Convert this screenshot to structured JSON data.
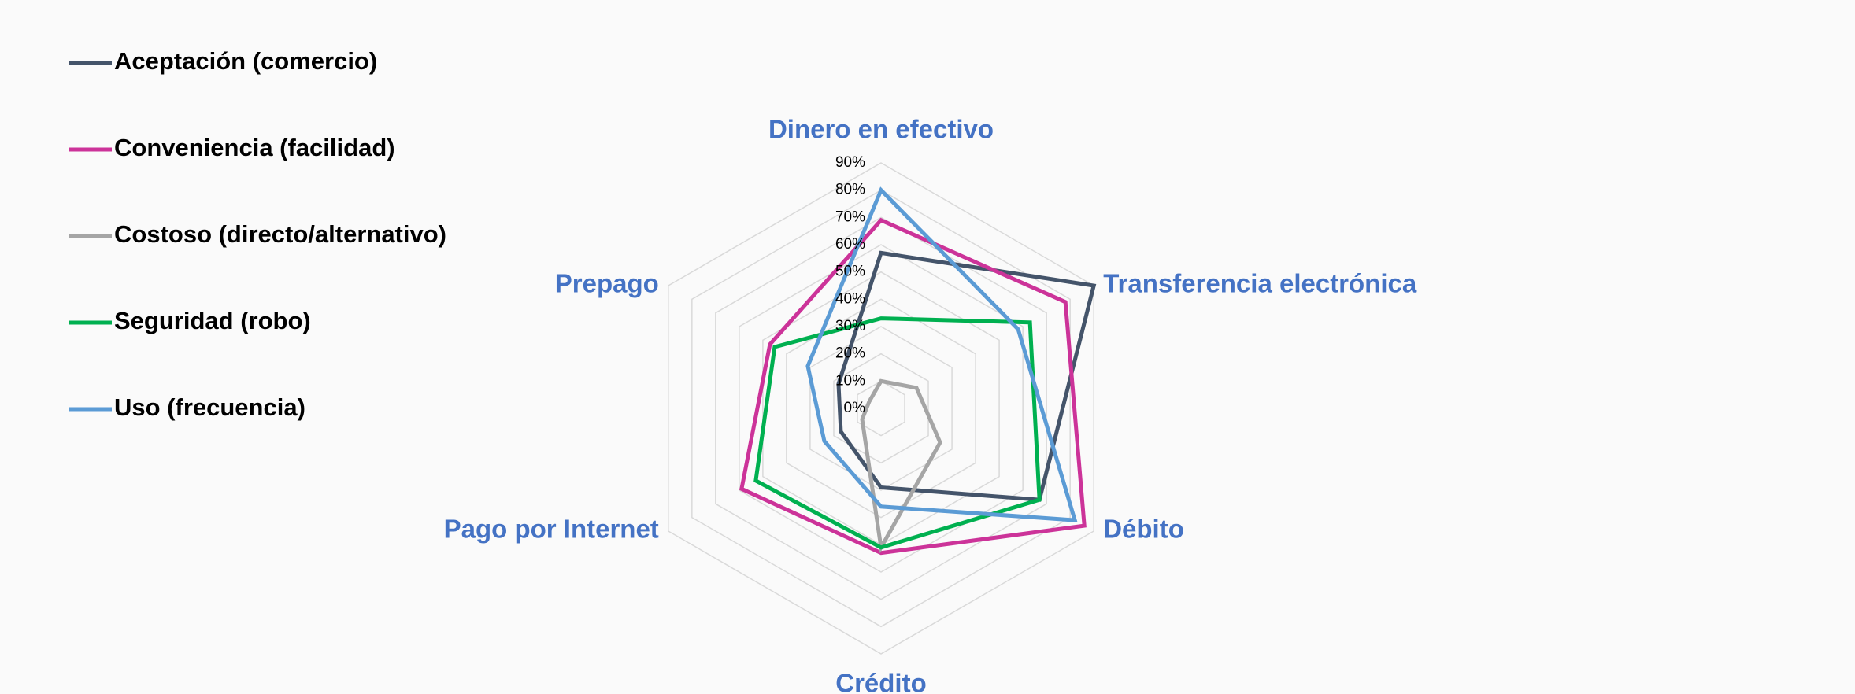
{
  "chart_data": {
    "type": "radar",
    "categories": [
      "Dinero en efectivo",
      "Transferencia electrónica",
      "Débito",
      "Crédito",
      "Pago por Internet",
      "Prepago"
    ],
    "rlim": [
      0,
      90
    ],
    "rticks": [
      {
        "value": 0,
        "label": "0%"
      },
      {
        "value": 10,
        "label": "10%"
      },
      {
        "value": 20,
        "label": "20%"
      },
      {
        "value": 30,
        "label": "30%"
      },
      {
        "value": 40,
        "label": "40%"
      },
      {
        "value": 50,
        "label": "50%"
      },
      {
        "value": 60,
        "label": "60%"
      },
      {
        "value": 70,
        "label": "70%"
      },
      {
        "value": 80,
        "label": "80%"
      },
      {
        "value": 90,
        "label": "90%"
      }
    ],
    "grid": true,
    "legend": "upper left",
    "series": [
      {
        "name": "Aceptación (comercio)",
        "color": "#44546a",
        "values": [
          57,
          90,
          67,
          29,
          17,
          18
        ]
      },
      {
        "name": "Conveniencia (facilidad)",
        "color": "#cc3399",
        "values": [
          69,
          78,
          86,
          53,
          59,
          47
        ]
      },
      {
        "name": "Costoso (directo/alternativo)",
        "color": "#a5a5a5",
        "values": [
          10,
          15,
          25,
          51,
          8,
          5
        ]
      },
      {
        "name": "Seguridad (robo)",
        "color": "#00b050",
        "values": [
          33,
          63,
          67,
          51,
          53,
          45
        ]
      },
      {
        "name": "Uso (frecuencia)",
        "color": "#5b9bd5",
        "values": [
          80,
          58,
          82,
          36,
          24,
          31
        ]
      }
    ]
  }
}
